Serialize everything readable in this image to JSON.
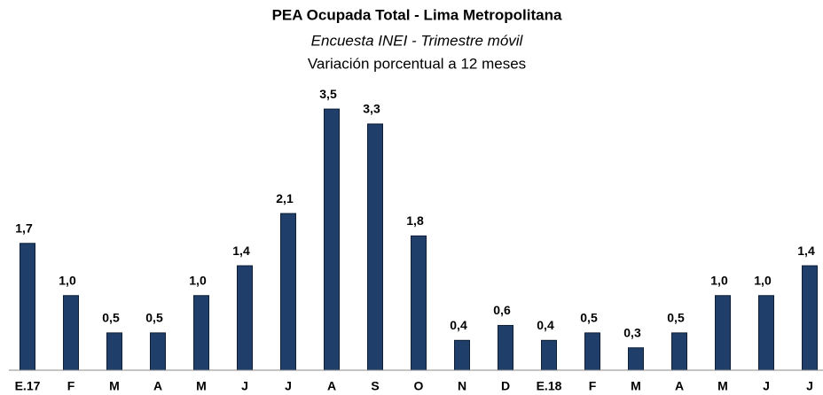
{
  "chart_data": {
    "type": "bar",
    "title": "PEA Ocupada Total - Lima Metropolitana",
    "subtitle": "Encuesta INEI - Trimestre móvil",
    "y_label": "Variación porcentual a 12 meses",
    "categories": [
      "E.17",
      "F",
      "M",
      "A",
      "M",
      "J",
      "J",
      "A",
      "S",
      "O",
      "N",
      "D",
      "E.18",
      "F",
      "M",
      "A",
      "M",
      "J",
      "J"
    ],
    "values": [
      1.7,
      1.0,
      0.5,
      0.5,
      1.0,
      1.4,
      2.1,
      3.5,
      3.3,
      1.8,
      0.4,
      0.6,
      0.4,
      0.5,
      0.3,
      0.5,
      1.0,
      1.0,
      1.4
    ],
    "value_labels": [
      "1,7",
      "1,0",
      "0,5",
      "0,5",
      "1,0",
      "1,4",
      "2,1",
      "3,5",
      "3,3",
      "1,8",
      "0,4",
      "0,6",
      "0,4",
      "0,5",
      "0,3",
      "0,5",
      "1,0",
      "1,0",
      "1,4"
    ],
    "color": "#1f3f6a",
    "ylim": [
      0,
      4
    ]
  }
}
